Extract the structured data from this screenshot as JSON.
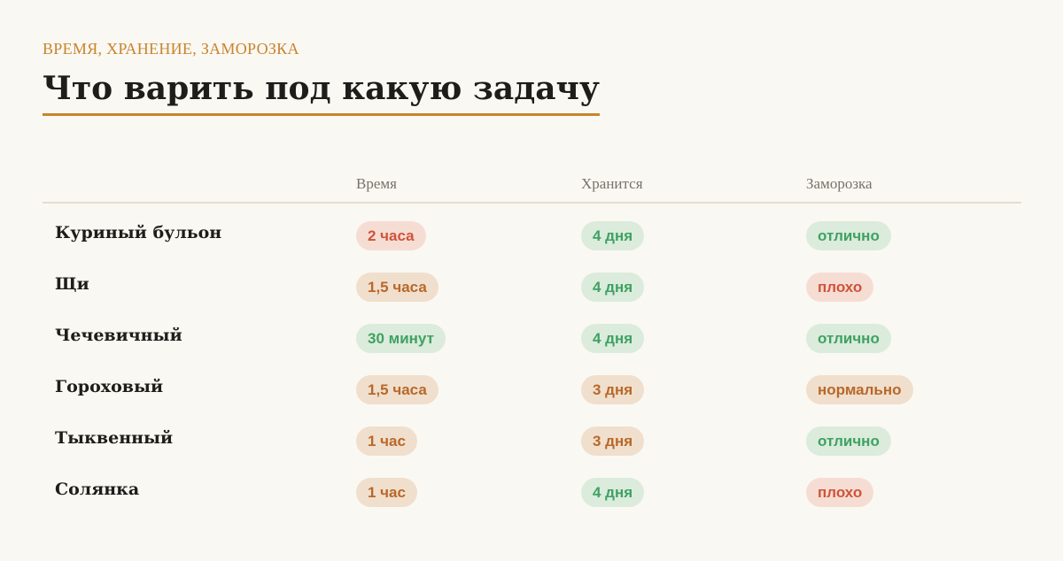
{
  "header": {
    "eyebrow": "ВРЕМЯ, ХРАНЕНИЕ, ЗАМОРОЗКА",
    "title": "Что варить под какую задачу"
  },
  "colors": {
    "accent": "#c8842e",
    "red": "#d0533a",
    "orange": "#b8682a",
    "green": "#3ea262"
  },
  "table": {
    "columns": [
      "Время",
      "Хранится",
      "Заморозка"
    ],
    "rows": [
      {
        "name": "Куриный бульон",
        "time": {
          "text": "2 часа",
          "tone": "red"
        },
        "store": {
          "text": "4 дня",
          "tone": "green"
        },
        "freeze": {
          "text": "отлично",
          "tone": "green"
        }
      },
      {
        "name": "Щи",
        "time": {
          "text": "1,5 часа",
          "tone": "orange"
        },
        "store": {
          "text": "4 дня",
          "tone": "green"
        },
        "freeze": {
          "text": "плохо",
          "tone": "red"
        }
      },
      {
        "name": "Чечевичный",
        "time": {
          "text": "30 минут",
          "tone": "green"
        },
        "store": {
          "text": "4 дня",
          "tone": "green"
        },
        "freeze": {
          "text": "отлично",
          "tone": "green"
        }
      },
      {
        "name": "Гороховый",
        "time": {
          "text": "1,5 часа",
          "tone": "orange"
        },
        "store": {
          "text": "3 дня",
          "tone": "orange"
        },
        "freeze": {
          "text": "нормально",
          "tone": "orange"
        }
      },
      {
        "name": "Тыквенный",
        "time": {
          "text": "1 час",
          "tone": "orange"
        },
        "store": {
          "text": "3 дня",
          "tone": "orange"
        },
        "freeze": {
          "text": "отлично",
          "tone": "green"
        }
      },
      {
        "name": "Солянка",
        "time": {
          "text": "1 час",
          "tone": "orange"
        },
        "store": {
          "text": "4 дня",
          "tone": "green"
        },
        "freeze": {
          "text": "плохо",
          "tone": "red"
        }
      }
    ]
  }
}
